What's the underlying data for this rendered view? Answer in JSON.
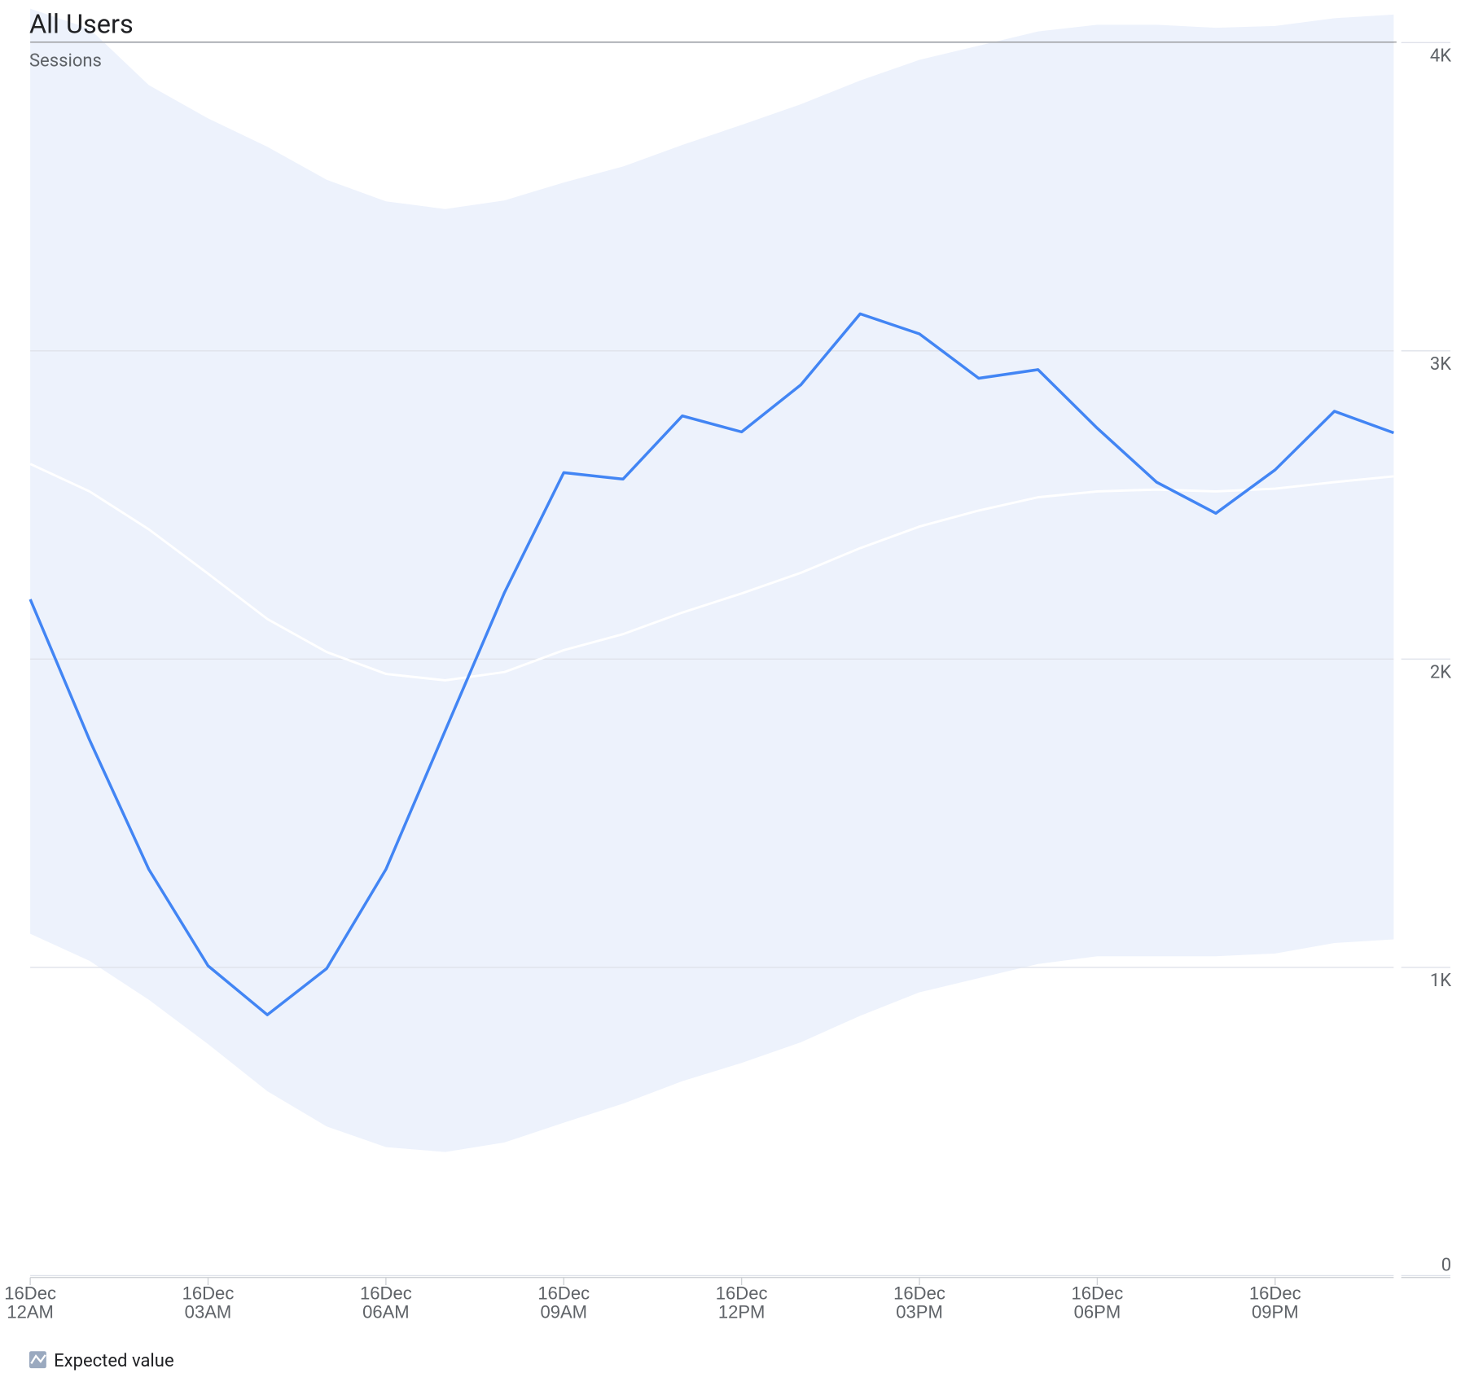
{
  "chart_data": {
    "type": "line",
    "title": "All Users",
    "subtitle": "Sessions",
    "categories": [
      "16Dec\n12AM",
      null,
      null,
      "16Dec\n03AM",
      null,
      null,
      "16Dec\n06AM",
      null,
      null,
      "16Dec\n09AM",
      null,
      null,
      "16Dec\n12PM",
      null,
      null,
      "16Dec\n03PM",
      null,
      null,
      "16Dec\n06PM",
      null,
      null,
      "16Dec\n09PM",
      null,
      null
    ],
    "series": [
      {
        "color": "#4285f4",
        "values": [
          2194,
          1738,
          1318,
          1005,
          846,
          996,
          1318,
          1768,
          2216,
          2605,
          2584,
          2789,
          2737,
          2890,
          3120,
          3055,
          2911,
          2939,
          2749,
          2574,
          2473,
          2614,
          2804,
          2734
        ]
      },
      {
        "name": "Expected value",
        "color": "#ffffff",
        "values": [
          2633,
          2544,
          2421,
          2277,
          2130,
          2023,
          1952,
          1931,
          1958,
          2029,
          2081,
          2151,
          2213,
          2280,
          2360,
          2430,
          2482,
          2525,
          2544,
          2550,
          2544,
          2553,
          2574,
          2593
        ]
      }
    ],
    "band": {
      "color": "#edf2fc",
      "upper": [
        4110,
        4045,
        3862,
        3754,
        3662,
        3555,
        3485,
        3460,
        3488,
        3546,
        3598,
        3668,
        3733,
        3800,
        3877,
        3944,
        3990,
        4036,
        4058,
        4058,
        4048,
        4054,
        4079,
        4091
      ],
      "lower": [
        1109,
        1021,
        895,
        751,
        598,
        484,
        417,
        401,
        432,
        496,
        558,
        631,
        690,
        757,
        843,
        919,
        965,
        1011,
        1036,
        1036,
        1036,
        1045,
        1079,
        1091
      ]
    },
    "ylim": [
      0,
      4000
    ],
    "yticks": [
      0,
      {
        "value": 1000,
        "label": "1K"
      },
      {
        "value": 2000,
        "label": "2K"
      },
      {
        "value": 3000,
        "label": "3K"
      },
      {
        "value": 4000,
        "label": "4K"
      }
    ],
    "y_axis_side": "right",
    "grid": true
  }
}
